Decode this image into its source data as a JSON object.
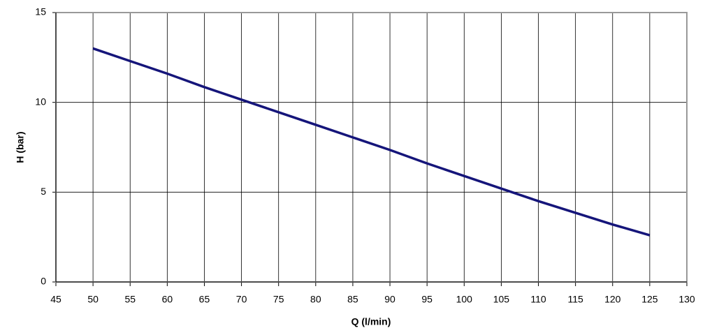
{
  "chart_data": {
    "type": "line",
    "x_label": "Q (l/min)",
    "y_label": "H (bar)",
    "x": [
      50,
      55,
      60,
      65,
      70,
      75,
      80,
      85,
      90,
      95,
      100,
      105,
      110,
      115,
      120,
      125
    ],
    "series": [
      {
        "color": "#15157a",
        "values": [
          13.0,
          12.3,
          11.6,
          10.85,
          10.15,
          9.45,
          8.75,
          8.05,
          7.35,
          6.6,
          5.9,
          5.2,
          4.5,
          3.85,
          3.2,
          2.6
        ]
      }
    ],
    "xlim": [
      45,
      130
    ],
    "xticks": [
      45,
      50,
      55,
      60,
      65,
      70,
      75,
      80,
      85,
      90,
      95,
      100,
      105,
      110,
      115,
      120,
      125,
      130
    ],
    "ylim": [
      0,
      15
    ],
    "yticks": [
      0,
      5,
      10,
      15
    ],
    "grid": true
  }
}
